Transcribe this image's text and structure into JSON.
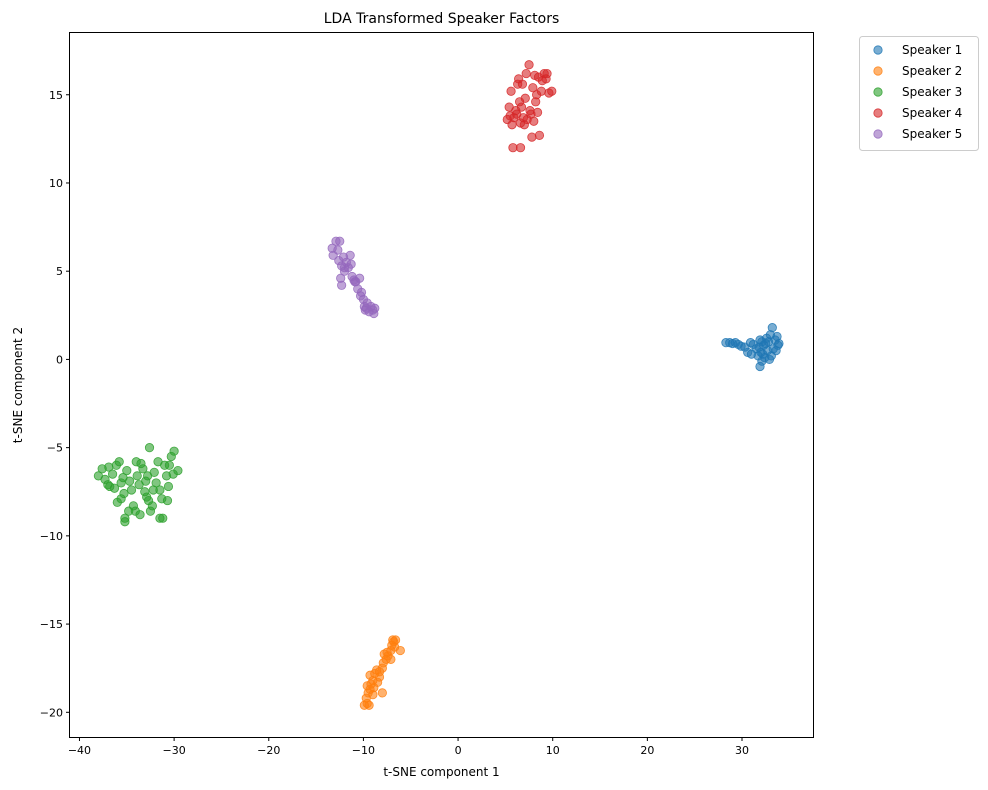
{
  "chart_data": {
    "type": "scatter",
    "title": "LDA Transformed Speaker Factors",
    "xlabel": "t-SNE component 1",
    "ylabel": "t-SNE component 2",
    "xlim": [
      -41,
      37.5
    ],
    "ylim": [
      -21.4,
      18.5
    ],
    "xticks": [
      -40,
      -30,
      -20,
      -10,
      0,
      10,
      20,
      30
    ],
    "yticks": [
      -20,
      -15,
      -10,
      -5,
      0,
      5,
      10,
      15
    ],
    "grid": false,
    "legend_position": "outside-top-right",
    "marker_alpha": 0.6,
    "series": [
      {
        "name": "Speaker 1",
        "color": "#1f77b4",
        "points": [
          [
            28.3,
            0.95
          ],
          [
            28.7,
            0.95
          ],
          [
            29.0,
            0.9
          ],
          [
            29.3,
            0.95
          ],
          [
            29.6,
            0.85
          ],
          [
            29.9,
            0.75
          ],
          [
            30.3,
            0.7
          ],
          [
            30.6,
            0.4
          ],
          [
            30.9,
            0.95
          ],
          [
            31.2,
            0.85
          ],
          [
            31.0,
            0.3
          ],
          [
            31.5,
            0.6
          ],
          [
            31.7,
            0.2
          ],
          [
            31.9,
            1.1
          ],
          [
            32.1,
            1.0
          ],
          [
            32.3,
            0.8
          ],
          [
            32.0,
            0.4
          ],
          [
            32.2,
            0.3
          ],
          [
            31.9,
            -0.4
          ],
          [
            32.1,
            -0.1
          ],
          [
            32.4,
            0.1
          ],
          [
            32.6,
            1.2
          ],
          [
            32.8,
            1.0
          ],
          [
            33.0,
            1.4
          ],
          [
            33.2,
            1.8
          ],
          [
            33.3,
            0.6
          ],
          [
            33.5,
            1.1
          ],
          [
            33.7,
            1.3
          ],
          [
            33.9,
            0.9
          ],
          [
            33.6,
            0.5
          ],
          [
            33.1,
            0.2
          ],
          [
            32.7,
            0.5
          ],
          [
            32.5,
            0.9
          ],
          [
            31.8,
            0.7
          ],
          [
            33.8,
            0.8
          ],
          [
            32.9,
            0.0
          ]
        ]
      },
      {
        "name": "Speaker 2",
        "color": "#ff7f0e",
        "points": [
          [
            -9.9,
            -19.6
          ],
          [
            -9.6,
            -19.5
          ],
          [
            -9.4,
            -19.6
          ],
          [
            -9.7,
            -19.2
          ],
          [
            -9.5,
            -18.9
          ],
          [
            -9.3,
            -18.7
          ],
          [
            -9.6,
            -18.5
          ],
          [
            -9.2,
            -18.4
          ],
          [
            -9.0,
            -18.2
          ],
          [
            -9.3,
            -17.9
          ],
          [
            -8.8,
            -17.8
          ],
          [
            -8.6,
            -17.6
          ],
          [
            -8.9,
            -18.6
          ],
          [
            -8.5,
            -18.3
          ],
          [
            -8.3,
            -18.0
          ],
          [
            -8.0,
            -17.5
          ],
          [
            -7.9,
            -17.2
          ],
          [
            -7.6,
            -17.0
          ],
          [
            -7.4,
            -16.8
          ],
          [
            -7.8,
            -16.7
          ],
          [
            -7.1,
            -16.5
          ],
          [
            -7.0,
            -16.2
          ],
          [
            -6.8,
            -16.0
          ],
          [
            -6.6,
            -15.9
          ],
          [
            -6.9,
            -15.9
          ],
          [
            -6.7,
            -16.3
          ],
          [
            -6.1,
            -16.5
          ],
          [
            -7.1,
            -17.0
          ],
          [
            -8.0,
            -18.9
          ],
          [
            -9.0,
            -19.0
          ],
          [
            -8.3,
            -17.7
          ],
          [
            -7.5,
            -16.6
          ]
        ]
      },
      {
        "name": "Speaker 3",
        "color": "#2ca02c",
        "points": [
          [
            -38.0,
            -6.6
          ],
          [
            -37.6,
            -6.2
          ],
          [
            -37.3,
            -6.8
          ],
          [
            -37.0,
            -7.1
          ],
          [
            -36.9,
            -6.1
          ],
          [
            -36.5,
            -6.5
          ],
          [
            -36.3,
            -7.3
          ],
          [
            -36.1,
            -6.0
          ],
          [
            -35.8,
            -5.8
          ],
          [
            -35.6,
            -7.0
          ],
          [
            -35.4,
            -6.7
          ],
          [
            -35.3,
            -7.6
          ],
          [
            -35.6,
            -7.9
          ],
          [
            -36.0,
            -8.1
          ],
          [
            -35.2,
            -9.0
          ],
          [
            -35.2,
            -9.2
          ],
          [
            -35.0,
            -6.3
          ],
          [
            -34.7,
            -6.9
          ],
          [
            -34.5,
            -7.4
          ],
          [
            -34.3,
            -8.3
          ],
          [
            -34.1,
            -8.6
          ],
          [
            -33.9,
            -6.6
          ],
          [
            -33.7,
            -7.1
          ],
          [
            -33.5,
            -5.9
          ],
          [
            -33.3,
            -6.2
          ],
          [
            -33.1,
            -7.5
          ],
          [
            -32.9,
            -7.8
          ],
          [
            -32.7,
            -8.0
          ],
          [
            -32.5,
            -8.6
          ],
          [
            -32.3,
            -8.3
          ],
          [
            -32.6,
            -5.0
          ],
          [
            -32.8,
            -6.6
          ],
          [
            -32.1,
            -6.4
          ],
          [
            -31.9,
            -7.0
          ],
          [
            -31.7,
            -5.8
          ],
          [
            -31.5,
            -7.4
          ],
          [
            -31.3,
            -7.9
          ],
          [
            -31.2,
            -9.0
          ],
          [
            -31.5,
            -9.0
          ],
          [
            -31.0,
            -6.0
          ],
          [
            -30.8,
            -6.6
          ],
          [
            -30.6,
            -7.2
          ],
          [
            -30.5,
            -6.0
          ],
          [
            -30.3,
            -5.5
          ],
          [
            -30.0,
            -5.2
          ],
          [
            -30.1,
            -6.5
          ],
          [
            -29.6,
            -6.3
          ],
          [
            -30.7,
            -8.0
          ],
          [
            -34.0,
            -5.8
          ],
          [
            -33.0,
            -6.9
          ],
          [
            -36.8,
            -7.2
          ],
          [
            -34.8,
            -8.6
          ],
          [
            -32.2,
            -7.4
          ],
          [
            -33.6,
            -8.8
          ]
        ]
      },
      {
        "name": "Speaker 4",
        "color": "#d62728",
        "points": [
          [
            5.2,
            13.6
          ],
          [
            5.4,
            14.3
          ],
          [
            5.6,
            15.2
          ],
          [
            5.7,
            13.3
          ],
          [
            5.8,
            12.0
          ],
          [
            5.9,
            13.7
          ],
          [
            6.1,
            14.1
          ],
          [
            6.3,
            15.6
          ],
          [
            6.4,
            15.9
          ],
          [
            6.5,
            14.6
          ],
          [
            6.6,
            13.4
          ],
          [
            6.6,
            12.0
          ],
          [
            6.8,
            15.6
          ],
          [
            6.9,
            13.7
          ],
          [
            7.1,
            14.8
          ],
          [
            7.2,
            16.2
          ],
          [
            7.3,
            13.6
          ],
          [
            7.5,
            16.7
          ],
          [
            7.6,
            14.1
          ],
          [
            7.7,
            13.9
          ],
          [
            7.8,
            12.6
          ],
          [
            7.9,
            15.4
          ],
          [
            8.1,
            16.1
          ],
          [
            8.2,
            14.6
          ],
          [
            8.3,
            15.0
          ],
          [
            8.4,
            14.0
          ],
          [
            8.5,
            16.0
          ],
          [
            8.6,
            12.7
          ],
          [
            8.8,
            15.2
          ],
          [
            8.9,
            15.8
          ],
          [
            9.1,
            16.2
          ],
          [
            9.3,
            15.9
          ],
          [
            9.4,
            16.2
          ],
          [
            9.6,
            15.1
          ],
          [
            9.9,
            15.2
          ],
          [
            6.2,
            13.9
          ],
          [
            7.0,
            13.3
          ],
          [
            8.0,
            13.5
          ],
          [
            5.5,
            13.8
          ],
          [
            6.7,
            14.3
          ]
        ]
      },
      {
        "name": "Speaker 5",
        "color": "#9467bd",
        "points": [
          [
            -13.3,
            6.3
          ],
          [
            -13.2,
            5.9
          ],
          [
            -12.9,
            6.7
          ],
          [
            -12.7,
            6.2
          ],
          [
            -12.5,
            6.7
          ],
          [
            -12.6,
            5.6
          ],
          [
            -12.3,
            5.3
          ],
          [
            -12.1,
            5.8
          ],
          [
            -12.4,
            4.6
          ],
          [
            -12.3,
            4.2
          ],
          [
            -12.0,
            5.0
          ],
          [
            -11.8,
            5.5
          ],
          [
            -11.6,
            5.2
          ],
          [
            -11.4,
            5.9
          ],
          [
            -11.2,
            4.7
          ],
          [
            -11.0,
            4.5
          ],
          [
            -10.8,
            4.4
          ],
          [
            -10.6,
            4.0
          ],
          [
            -10.4,
            4.6
          ],
          [
            -10.2,
            3.8
          ],
          [
            -10.0,
            3.4
          ],
          [
            -9.9,
            3.0
          ],
          [
            -9.8,
            2.8
          ],
          [
            -9.6,
            3.2
          ],
          [
            -9.4,
            2.7
          ],
          [
            -9.2,
            3.0
          ],
          [
            -9.0,
            2.8
          ],
          [
            -8.9,
            2.6
          ],
          [
            -8.8,
            2.9
          ],
          [
            -10.3,
            3.6
          ],
          [
            -11.3,
            5.4
          ],
          [
            -12.0,
            5.2
          ],
          [
            -9.7,
            2.9
          ],
          [
            -10.9,
            4.4
          ]
        ]
      }
    ]
  }
}
